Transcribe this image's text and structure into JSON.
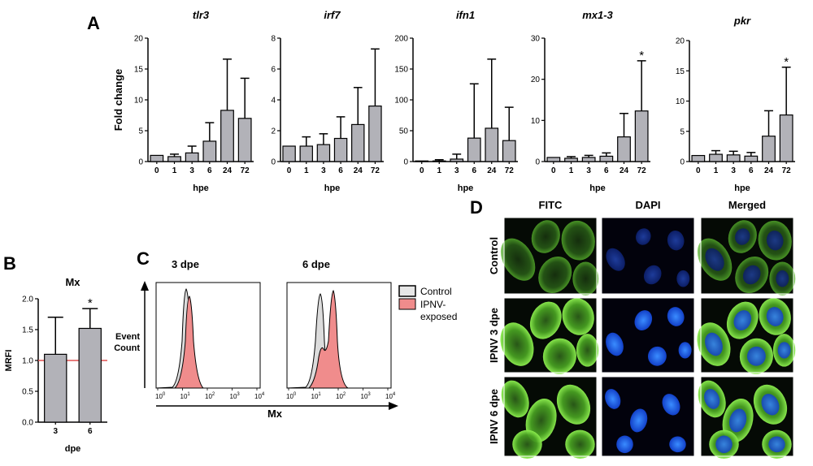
{
  "panel_labels": {
    "a": "A",
    "b": "B",
    "c": "C",
    "d": "D"
  },
  "colors": {
    "bar": "#b2b2b8",
    "control_fill": "#dcdcdc",
    "ipnv_fill": "#f08c8c",
    "ref_line": "#e05050"
  },
  "chart_data": [
    {
      "type": "bar",
      "panel": "A",
      "title": "tlr3",
      "ylabel": "Fold change",
      "xlabel": "hpe",
      "categories": [
        "0",
        "1",
        "3",
        "6",
        "24",
        "72"
      ],
      "values": [
        1.0,
        0.8,
        1.4,
        3.3,
        8.3,
        7.0
      ],
      "errors": [
        0,
        0.4,
        1.1,
        3.0,
        8.3,
        6.5
      ],
      "significance": [
        "",
        "",
        "",
        "",
        "",
        ""
      ],
      "ylim": [
        0,
        20
      ],
      "yticks": [
        "0",
        "5",
        "10",
        "15",
        "20"
      ]
    },
    {
      "type": "bar",
      "panel": "A",
      "title": "irf7",
      "xlabel": "hpe",
      "categories": [
        "0",
        "1",
        "3",
        "6",
        "24",
        "72"
      ],
      "values": [
        1.0,
        1.0,
        1.1,
        1.5,
        2.4,
        3.6
      ],
      "errors": [
        0,
        0.6,
        0.7,
        1.4,
        2.4,
        3.7
      ],
      "significance": [
        "",
        "",
        "",
        "",
        "",
        ""
      ],
      "ylim": [
        0,
        8
      ],
      "yticks": [
        "0",
        "2",
        "4",
        "6",
        "8"
      ]
    },
    {
      "type": "bar",
      "panel": "A",
      "title": "ifn1",
      "xlabel": "hpe",
      "categories": [
        "0",
        "1",
        "3",
        "6",
        "24",
        "72"
      ],
      "values": [
        1,
        1,
        4,
        38,
        54,
        34
      ],
      "errors": [
        0,
        2,
        8,
        88,
        112,
        54
      ],
      "significance": [
        "",
        "",
        "",
        "",
        "",
        ""
      ],
      "ylim": [
        0,
        200
      ],
      "yticks": [
        "0",
        "50",
        "100",
        "150",
        "200"
      ]
    },
    {
      "type": "bar",
      "panel": "A",
      "title": "mx1-3",
      "xlabel": "hpe",
      "categories": [
        "0",
        "1",
        "3",
        "6",
        "24",
        "72"
      ],
      "values": [
        1.0,
        0.8,
        1.0,
        1.3,
        6.0,
        12.3
      ],
      "errors": [
        0,
        0.4,
        0.5,
        0.8,
        5.7,
        12.2
      ],
      "significance": [
        "",
        "",
        "",
        "",
        "",
        "*"
      ],
      "ylim": [
        0,
        30
      ],
      "yticks": [
        "0",
        "10",
        "20",
        "30"
      ]
    },
    {
      "type": "bar",
      "panel": "A",
      "title": "pkr",
      "xlabel": "hpe",
      "categories": [
        "0",
        "1",
        "3",
        "6",
        "24",
        "72"
      ],
      "values": [
        1.0,
        1.2,
        1.1,
        0.9,
        4.2,
        7.7
      ],
      "errors": [
        0,
        0.6,
        0.6,
        0.6,
        4.2,
        7.9
      ],
      "significance": [
        "",
        "",
        "",
        "",
        "",
        "*"
      ],
      "ylim": [
        0,
        20
      ],
      "yticks": [
        "0",
        "5",
        "10",
        "15",
        "20"
      ]
    },
    {
      "type": "bar",
      "panel": "B",
      "title": "Mx",
      "ylabel": "MRFI",
      "xlabel": "dpe",
      "categories": [
        "3",
        "6"
      ],
      "values": [
        1.1,
        1.52
      ],
      "errors": [
        0.6,
        0.32
      ],
      "significance": [
        "",
        "*"
      ],
      "reference_line": 1.0,
      "ylim": [
        0,
        2.0
      ],
      "yticks": [
        "0.0",
        "0.5",
        "1.0",
        "1.5",
        "2.0"
      ]
    }
  ],
  "panel_c": {
    "titles": [
      "3 dpe",
      "6 dpe"
    ],
    "ylabel_line1": "Event",
    "ylabel_line2": "Count",
    "xlabel": "Mx",
    "xticks": [
      {
        "base": "10",
        "exp": "0"
      },
      {
        "base": "10",
        "exp": "1"
      },
      {
        "base": "10",
        "exp": "2"
      },
      {
        "base": "10",
        "exp": "3"
      },
      {
        "base": "10",
        "exp": "4"
      }
    ],
    "legend": {
      "control": "Control",
      "ipnv_line1": "IPNV-",
      "ipnv_line2": "exposed"
    }
  },
  "panel_d": {
    "columns": [
      "FITC",
      "DAPI",
      "Merged"
    ],
    "rows": [
      "Control",
      "IPNV 3 dpe",
      "IPNV 6 dpe"
    ]
  }
}
